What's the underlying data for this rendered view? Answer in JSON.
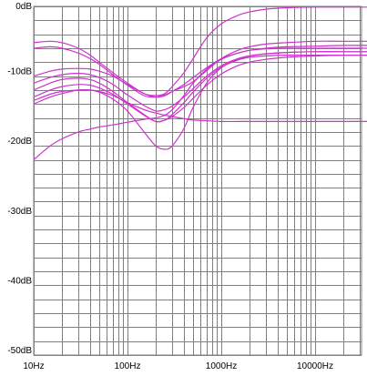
{
  "chart_data": {
    "type": "line",
    "title": "",
    "xlabel": "",
    "ylabel": "",
    "x_scale": "log",
    "xlim": [
      10,
      40000
    ],
    "ylim": [
      -50,
      0
    ],
    "grid": true,
    "x_tick_labels": [
      {
        "value": 10,
        "label": "10Hz"
      },
      {
        "value": 100,
        "label": "100Hz"
      },
      {
        "value": 1000,
        "label": "1000Hz"
      },
      {
        "value": 10000,
        "label": "10000Hz"
      }
    ],
    "y_tick_labels": [
      {
        "value": 0,
        "label": "0dB"
      },
      {
        "value": -10,
        "label": "-10dB"
      },
      {
        "value": -20,
        "label": "-20dB"
      },
      {
        "value": -30,
        "label": "-30dB"
      },
      {
        "value": -40,
        "label": "-40dB"
      },
      {
        "value": -50,
        "label": "-50dB"
      }
    ],
    "line_color": "#cc33cc",
    "grid_color": "#808080",
    "series": [
      {
        "x": [
          10,
          15,
          20,
          30,
          40,
          50,
          70,
          100,
          150,
          200,
          250,
          300,
          400,
          500,
          700,
          1000,
          1500,
          2000,
          3000,
          5000,
          10000,
          20000,
          40000
        ],
        "y": [
          -5.2,
          -5.0,
          -5.2,
          -6.0,
          -7.0,
          -8.0,
          -9.5,
          -11.0,
          -12.5,
          -12.8,
          -12.5,
          -11.5,
          -9.5,
          -7.5,
          -4.5,
          -2.5,
          -1.3,
          -0.8,
          -0.4,
          -0.2,
          -0.1,
          -0.1,
          -0.1
        ]
      },
      {
        "x": [
          10,
          15,
          20,
          30,
          40,
          50,
          70,
          100,
          150,
          200,
          250,
          300,
          400,
          500,
          700,
          1000,
          1500,
          2000,
          3000,
          5000,
          10000,
          20000,
          40000
        ],
        "y": [
          -6.0,
          -5.8,
          -6.0,
          -6.7,
          -7.5,
          -8.3,
          -9.8,
          -11.3,
          -12.8,
          -13.0,
          -12.7,
          -12.2,
          -11.5,
          -10.8,
          -9.2,
          -7.5,
          -6.3,
          -5.8,
          -5.4,
          -5.2,
          -5.0,
          -5.0,
          -5.0
        ]
      },
      {
        "x": [
          10,
          15,
          20,
          30,
          40,
          50,
          70,
          100,
          150,
          200,
          250,
          300,
          400,
          500,
          700,
          1000,
          1500,
          2000,
          3000,
          5000,
          10000,
          20000,
          40000
        ],
        "y": [
          -10.0,
          -9.3,
          -9.0,
          -8.9,
          -9.0,
          -9.3,
          -10.0,
          -11.2,
          -12.5,
          -13.0,
          -12.8,
          -12.2,
          -11.2,
          -10.2,
          -8.8,
          -7.5,
          -6.7,
          -6.3,
          -6.1,
          -6.0,
          -6.0,
          -6.0,
          -6.0
        ]
      },
      {
        "x": [
          10,
          15,
          20,
          30,
          40,
          50,
          70,
          100,
          150,
          200,
          250,
          300,
          400,
          500,
          700,
          1000,
          1500,
          2000,
          3000,
          5000,
          10000,
          20000,
          40000
        ],
        "y": [
          -11.0,
          -10.2,
          -9.8,
          -9.6,
          -9.8,
          -10.2,
          -11.2,
          -12.7,
          -14.2,
          -15.0,
          -14.8,
          -14.3,
          -13.0,
          -11.8,
          -10.0,
          -8.5,
          -7.5,
          -7.1,
          -6.8,
          -6.6,
          -6.5,
          -6.5,
          -6.5
        ]
      },
      {
        "x": [
          10,
          15,
          20,
          30,
          40,
          50,
          70,
          100,
          150,
          200,
          250,
          300,
          400,
          500,
          700,
          1000,
          1500,
          2000,
          3000,
          5000,
          10000,
          20000,
          40000
        ],
        "y": [
          -12.0,
          -11.0,
          -10.5,
          -10.3,
          -10.5,
          -11.0,
          -12.2,
          -13.8,
          -15.5,
          -16.5,
          -16.3,
          -15.5,
          -13.8,
          -12.3,
          -10.3,
          -8.7,
          -7.6,
          -7.1,
          -6.8,
          -6.6,
          -6.5,
          -6.5,
          -6.5
        ]
      },
      {
        "x": [
          10,
          15,
          20,
          30,
          40,
          50,
          70,
          100,
          150,
          200,
          250,
          300,
          400,
          500,
          700,
          1000,
          1500,
          2000,
          3000,
          5000,
          10000,
          20000,
          40000
        ],
        "y": [
          -13.0,
          -12.0,
          -11.5,
          -11.2,
          -11.3,
          -11.7,
          -12.6,
          -14.0,
          -15.6,
          -16.5,
          -16.3,
          -15.8,
          -14.5,
          -13.2,
          -11.3,
          -9.7,
          -8.5,
          -8.0,
          -7.6,
          -7.3,
          -7.1,
          -7.0,
          -7.0
        ]
      },
      {
        "x": [
          10,
          15,
          20,
          30,
          40,
          50,
          70,
          100,
          150,
          200,
          250,
          300,
          400,
          500,
          700,
          1000,
          1500,
          2000,
          3000,
          5000,
          10000,
          20000,
          40000
        ],
        "y": [
          -14.0,
          -13.0,
          -12.5,
          -12.0,
          -12.0,
          -12.3,
          -13.3,
          -15.0,
          -18.0,
          -20.0,
          -20.5,
          -20.0,
          -17.5,
          -14.5,
          -11.0,
          -8.8,
          -7.7,
          -7.3,
          -7.1,
          -7.0,
          -7.0,
          -7.0,
          -7.0
        ]
      },
      {
        "x": [
          10,
          15,
          20,
          30,
          40,
          50,
          70,
          100,
          150,
          200,
          250,
          300,
          400,
          500,
          700,
          1000,
          1500,
          2000,
          3000,
          5000,
          10000,
          20000,
          40000
        ],
        "y": [
          -13.5,
          -12.6,
          -12.2,
          -12.0,
          -12.0,
          -12.2,
          -12.8,
          -13.8,
          -14.8,
          -15.3,
          -15.6,
          -15.8,
          -16.1,
          -16.3,
          -16.4,
          -16.5,
          -16.5,
          -16.5,
          -16.5,
          -16.5,
          -16.5,
          -16.5,
          -16.5
        ]
      },
      {
        "x": [
          10,
          15,
          20,
          30,
          40,
          50,
          70,
          100,
          150,
          200,
          250,
          300,
          400,
          500,
          700,
          1000,
          1500,
          2000,
          3000,
          5000,
          10000,
          20000,
          40000
        ],
        "y": [
          -22.0,
          -20.0,
          -19.0,
          -18.0,
          -17.6,
          -17.3,
          -17.0,
          -16.6,
          -16.2,
          -16.0,
          -15.6,
          -14.8,
          -12.8,
          -11.0,
          -9.0,
          -7.6,
          -6.7,
          -6.3,
          -6.0,
          -5.8,
          -5.7,
          -5.6,
          -5.6
        ]
      }
    ]
  }
}
